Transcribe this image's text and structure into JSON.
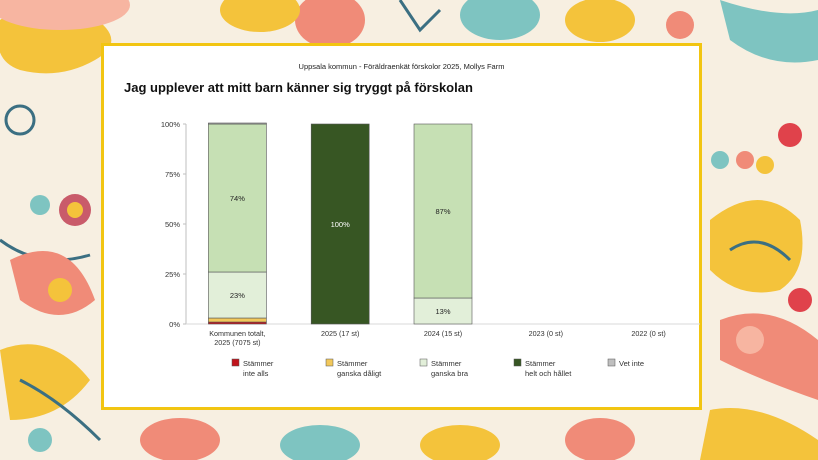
{
  "header": "Uppsala kommun - Föräldraenkät förskolor 2025, Mollys Farm",
  "chart_data": {
    "type": "bar",
    "stacked": true,
    "title": "Jag upplever att mitt barn känner sig tryggt på förskolan",
    "ylim": [
      0,
      100
    ],
    "y_ticks": [
      "0%",
      "25%",
      "50%",
      "75%",
      "100%"
    ],
    "categories": [
      [
        "Kommunen totalt,",
        "2025 (7075 st)"
      ],
      [
        "2025 (17 st)"
      ],
      [
        "2024 (15 st)"
      ],
      [
        "2023 (0 st)"
      ],
      [
        "2022 (0 st)"
      ]
    ],
    "series": [
      {
        "name": "Stämmer inte alls",
        "legend_lines": [
          "Stämmer",
          "inte alls"
        ],
        "color": "#c0141c",
        "values": [
          1,
          0,
          0,
          0,
          0
        ],
        "labels": [
          "",
          "",
          "",
          "",
          ""
        ]
      },
      {
        "name": "Stämmer ganska dåligt",
        "legend_lines": [
          "Stämmer",
          "ganska dåligt"
        ],
        "color": "#f2c85b",
        "values": [
          2,
          0,
          0,
          0,
          0
        ],
        "labels": [
          "",
          "",
          "",
          "",
          ""
        ]
      },
      {
        "name": "Stämmer ganska bra",
        "legend_lines": [
          "Stämmer",
          "ganska bra"
        ],
        "color": "#e2efd9",
        "values": [
          23,
          0,
          13,
          0,
          0
        ],
        "labels": [
          "23%",
          "",
          "13%",
          "",
          ""
        ]
      },
      {
        "name": "Stämmer helt och hållet",
        "legend_lines": [
          "Stämmer",
          "helt och hållet"
        ],
        "color": "#c6e0b4",
        "values": [
          74,
          100,
          87,
          0,
          0
        ],
        "labels": [
          "74%",
          "100%",
          "87%",
          "",
          ""
        ]
      },
      {
        "name": "Vet inte",
        "legend_lines": [
          "Vet inte"
        ],
        "color": "#bfbfbf",
        "values": [
          0.5,
          0,
          0,
          0,
          0
        ],
        "labels": [
          "",
          "",
          "",
          "",
          ""
        ]
      }
    ],
    "highlight_color": "#375623",
    "legend_position": "bottom",
    "grid": false
  }
}
